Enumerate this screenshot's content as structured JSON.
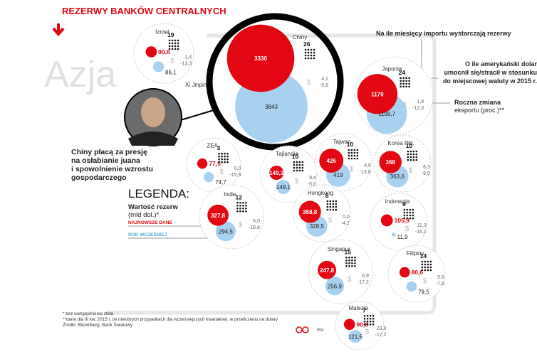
{
  "title": "REZERWY BANKÓW CENTRALNYCH",
  "region": "Azja",
  "photo_caption": "Xi Jinping",
  "comment": [
    "Chiny płacą za presję",
    "na osłabianie juana",
    "i spowolnienie wzrostu",
    "gospodarczego"
  ],
  "legend": {
    "heading": "LEGENDA:",
    "measure": [
      "Wartość rezerw",
      "(mld dol.)*"
    ],
    "latest": "NAJNOWSZE DANE",
    "previous": "ROK WCZEŚNIEJ"
  },
  "annotations": {
    "months": "Na ile miesięcy importu wystarczają rezerwy",
    "usd": [
      "O ile amerykański dolar",
      "umocnił się/stracił w stosunku",
      "do miejscowej waluty w 2015 r."
    ],
    "exports": [
      "Roczna zmiana",
      "eksportu (proc.)**"
    ]
  },
  "currency_symbol": "$",
  "colors": {
    "latest": "#e30613",
    "previous": "#a8d1ef"
  },
  "countries": [
    {
      "name": "Izrael",
      "months": 19,
      "latest": {
        "value": 90.6,
        "label": "90,6"
      },
      "previous": {
        "value": 86.1,
        "label": "86,1"
      },
      "usd": {
        "value": -1.4,
        "label": "-1,4"
      },
      "exports": {
        "value": -13.3,
        "label": "-13,3"
      }
    },
    {
      "name": "Chiny",
      "months": 26,
      "latest": {
        "value": 3330,
        "label": "3330"
      },
      "previous": {
        "value": 3843,
        "label": "3843"
      },
      "usd": {
        "value": 4.2,
        "label": "4,2"
      },
      "exports": {
        "value": -5.8,
        "label": "-5,8"
      }
    },
    {
      "name": "Japonia",
      "months": 24,
      "latest": {
        "value": 1179,
        "label": "1179"
      },
      "previous": {
        "value": 1199.7,
        "label": "1199,7"
      },
      "usd": {
        "value": 1.8,
        "label": "1,8"
      },
      "exports": {
        "value": -12.3,
        "label": "-12,3"
      }
    },
    {
      "name": "ZEA",
      "months": 3,
      "latest": {
        "value": 77.5,
        "label": "77,5"
      },
      "previous": {
        "value": 74.7,
        "label": "74,7"
      },
      "usd": {
        "value": 0.0,
        "label": "0,0"
      },
      "exports": {
        "value": -15.9,
        "label": "-15,9"
      }
    },
    {
      "name": "Tajlandia",
      "months": 10,
      "latest": {
        "value": 149.3,
        "label": "149,3"
      },
      "previous": {
        "value": 149.1,
        "label": "149,1"
      },
      "usd": {
        "value": 9.4,
        "label": "9,4"
      },
      "exports": {
        "value": -5.0,
        "label": "-5,0"
      }
    },
    {
      "name": "Tajwan",
      "months": 10,
      "latest": {
        "value": 426,
        "label": "426"
      },
      "previous": {
        "value": 419,
        "label": "419"
      },
      "usd": {
        "value": 4.5,
        "label": "4,5"
      },
      "exports": {
        "value": -13.8,
        "label": "-13,8"
      }
    },
    {
      "name": "Korea Płd.",
      "months": 10,
      "latest": {
        "value": 368,
        "label": "368"
      },
      "previous": {
        "value": 363.6,
        "label": "363,6"
      },
      "usd": {
        "value": 6.3,
        "label": "6,3"
      },
      "exports": {
        "value": -9.5,
        "label": "-9,5"
      }
    },
    {
      "name": "Indie",
      "months": 12,
      "latest": {
        "value": 327.8,
        "label": "327,8"
      },
      "previous": {
        "value": 294.5,
        "label": "294,5"
      },
      "usd": {
        "value": 6.0,
        "label": "6,0"
      },
      "exports": {
        "value": -18.8,
        "label": "-18,8"
      }
    },
    {
      "name": "Hongkong",
      "months": 8,
      "latest": {
        "value": 358.8,
        "label": "358,8"
      },
      "previous": {
        "value": 328.5,
        "label": "328,5"
      },
      "usd": {
        "value": 0.0,
        "label": "0,0"
      },
      "exports": {
        "value": -4.2,
        "label": "-4,2"
      }
    },
    {
      "name": "Indonezja",
      "months": 9,
      "latest": {
        "value": 105.9,
        "label": "105,9"
      },
      "previous": {
        "value": 11.9,
        "label": "11,9"
      },
      "usd": {
        "value": 11.3,
        "label": "11,3"
      },
      "exports": {
        "value": -16.1,
        "label": "-16,1"
      }
    },
    {
      "name": "Singapur",
      "months": 15,
      "latest": {
        "value": 247.8,
        "label": "247,8"
      },
      "previous": {
        "value": 256.9,
        "label": "256,9"
      },
      "usd": {
        "value": 6.9,
        "label": "6,9"
      },
      "exports": {
        "value": -17.2,
        "label": "-17,2"
      }
    },
    {
      "name": "Filipiny",
      "months": 14,
      "latest": {
        "value": 80.6,
        "label": "80,6"
      },
      "previous": {
        "value": 79.5,
        "label": "79,5"
      },
      "usd": {
        "value": 5.6,
        "label": "5,6"
      },
      "exports": {
        "value": -7.8,
        "label": "-7,8"
      }
    },
    {
      "name": "Malezja",
      "months": 7,
      "latest": {
        "value": 90.6,
        "label": "90,6"
      },
      "previous": {
        "value": 121.5,
        "label": "121,5"
      },
      "usd": {
        "value": 23.0,
        "label": "23,0"
      },
      "exports": {
        "value": -17.2,
        "label": "-17,2"
      }
    }
  ],
  "footnotes": [
    "* bez uwzględnienia złota",
    "**dane dla III kw. 2015 r. (w niektórych przypadkach dla wcześniejszych kwartałów), w przeliczeniu na dolary",
    "Źródło: Bloomberg, Bank Światowy"
  ],
  "credit": "RM"
}
